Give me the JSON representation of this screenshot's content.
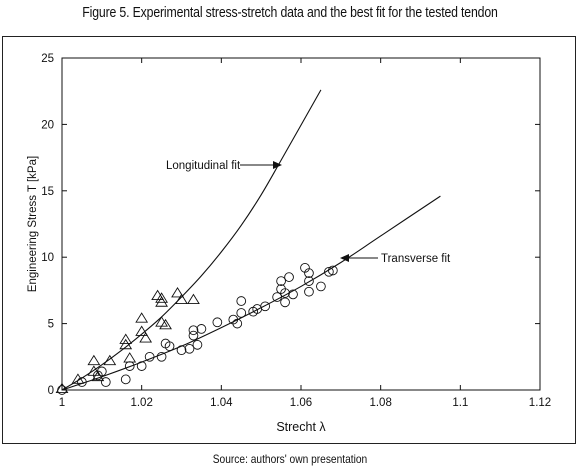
{
  "chart_data": {
    "type": "scatter",
    "title": "Figure 5. Experimental stress-stretch data and the best fit for the tested tendon",
    "xlabel": "Strecht λ",
    "ylabel": "Engineering Stress T [kPa]",
    "xlim": [
      1.0,
      1.12
    ],
    "ylim": [
      0,
      25
    ],
    "xticks": [
      "1",
      "1.02",
      "1.04",
      "1.06",
      "1.08",
      "1.1",
      "1.12"
    ],
    "yticks": [
      "0",
      "5",
      "10",
      "15",
      "20",
      "25"
    ],
    "grid": false,
    "series": [
      {
        "name": "Longitudinal",
        "marker": "triangle",
        "points": [
          [
            1.0,
            0.1
          ],
          [
            1.004,
            0.8
          ],
          [
            1.008,
            2.2
          ],
          [
            1.008,
            1.4
          ],
          [
            1.009,
            1.0
          ],
          [
            1.012,
            2.2
          ],
          [
            1.016,
            3.8
          ],
          [
            1.016,
            3.4
          ],
          [
            1.017,
            2.4
          ],
          [
            1.02,
            5.4
          ],
          [
            1.02,
            4.4
          ],
          [
            1.021,
            3.9
          ],
          [
            1.024,
            7.1
          ],
          [
            1.025,
            6.9
          ],
          [
            1.025,
            6.6
          ],
          [
            1.025,
            5.1
          ],
          [
            1.026,
            4.9
          ],
          [
            1.029,
            7.3
          ],
          [
            1.03,
            6.8
          ],
          [
            1.033,
            6.8
          ]
        ]
      },
      {
        "name": "Transverse",
        "marker": "circle",
        "points": [
          [
            1.0,
            0.0
          ],
          [
            1.005,
            0.6
          ],
          [
            1.009,
            1.1
          ],
          [
            1.01,
            1.4
          ],
          [
            1.011,
            0.6
          ],
          [
            1.016,
            0.8
          ],
          [
            1.017,
            1.8
          ],
          [
            1.02,
            1.8
          ],
          [
            1.022,
            2.5
          ],
          [
            1.025,
            2.5
          ],
          [
            1.027,
            3.3
          ],
          [
            1.026,
            3.5
          ],
          [
            1.03,
            3.0
          ],
          [
            1.032,
            3.1
          ],
          [
            1.033,
            4.5
          ],
          [
            1.033,
            4.1
          ],
          [
            1.034,
            3.4
          ],
          [
            1.035,
            4.6
          ],
          [
            1.039,
            5.1
          ],
          [
            1.043,
            5.3
          ],
          [
            1.044,
            5.0
          ],
          [
            1.045,
            5.8
          ],
          [
            1.045,
            6.7
          ],
          [
            1.048,
            5.9
          ],
          [
            1.049,
            6.1
          ],
          [
            1.051,
            6.3
          ],
          [
            1.054,
            7.0
          ],
          [
            1.055,
            8.2
          ],
          [
            1.055,
            7.6
          ],
          [
            1.056,
            7.3
          ],
          [
            1.056,
            6.6
          ],
          [
            1.057,
            8.5
          ],
          [
            1.058,
            7.2
          ],
          [
            1.061,
            9.2
          ],
          [
            1.062,
            8.8
          ],
          [
            1.062,
            8.2
          ],
          [
            1.062,
            7.4
          ],
          [
            1.065,
            7.8
          ],
          [
            1.067,
            8.9
          ],
          [
            1.068,
            9.0
          ]
        ]
      }
    ],
    "fits": [
      {
        "label": "Longitudinal fit",
        "x": [
          1.0,
          1.005,
          1.01,
          1.015,
          1.02,
          1.025,
          1.03,
          1.035,
          1.04,
          1.045,
          1.05,
          1.055,
          1.065
        ],
        "y": [
          0.0,
          0.9,
          1.9,
          3.0,
          4.2,
          5.5,
          7.0,
          8.6,
          10.4,
          12.4,
          14.7,
          17.3,
          22.6
        ]
      },
      {
        "label": "Transverse fit",
        "x": [
          1.0,
          1.01,
          1.02,
          1.03,
          1.04,
          1.05,
          1.06,
          1.07,
          1.08,
          1.095
        ],
        "y": [
          0.0,
          1.0,
          2.1,
          3.3,
          4.7,
          6.2,
          7.8,
          9.6,
          11.6,
          14.6
        ]
      }
    ]
  },
  "source_text": "Source: authors' own presentation"
}
